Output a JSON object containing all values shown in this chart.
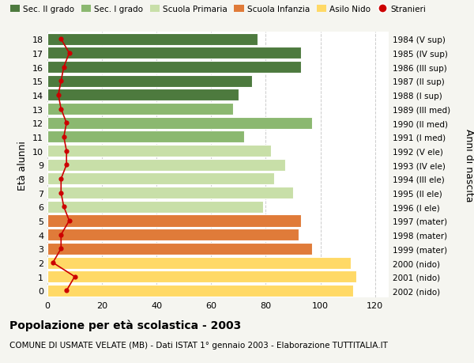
{
  "ages": [
    0,
    1,
    2,
    3,
    4,
    5,
    6,
    7,
    8,
    9,
    10,
    11,
    12,
    13,
    14,
    15,
    16,
    17,
    18
  ],
  "values": [
    112,
    113,
    111,
    97,
    92,
    93,
    79,
    90,
    83,
    87,
    82,
    72,
    97,
    68,
    70,
    75,
    93,
    93,
    77
  ],
  "bar_colors": [
    "#FFD966",
    "#FFD966",
    "#FFD966",
    "#E07B39",
    "#E07B39",
    "#E07B39",
    "#C8DFA8",
    "#C8DFA8",
    "#C8DFA8",
    "#C8DFA8",
    "#C8DFA8",
    "#8BB870",
    "#8BB870",
    "#8BB870",
    "#4D7A3E",
    "#4D7A3E",
    "#4D7A3E",
    "#4D7A3E",
    "#4D7A3E"
  ],
  "stranieri_values": [
    7,
    10,
    2,
    5,
    5,
    8,
    6,
    5,
    5,
    7,
    7,
    6,
    7,
    5,
    4,
    5,
    6,
    8,
    5
  ],
  "right_labels": [
    "2002 (nido)",
    "2001 (nido)",
    "2000 (nido)",
    "1999 (mater)",
    "1998 (mater)",
    "1997 (mater)",
    "1996 (I ele)",
    "1995 (II ele)",
    "1994 (III ele)",
    "1993 (IV ele)",
    "1992 (V ele)",
    "1991 (I med)",
    "1990 (II med)",
    "1989 (III med)",
    "1988 (I sup)",
    "1987 (II sup)",
    "1986 (III sup)",
    "1985 (IV sup)",
    "1984 (V sup)"
  ],
  "legend_labels": [
    "Sec. II grado",
    "Sec. I grado",
    "Scuola Primaria",
    "Scuola Infanzia",
    "Asilo Nido",
    "Stranieri"
  ],
  "legend_colors": [
    "#4D7A3E",
    "#8BB870",
    "#C8DFA8",
    "#E07B39",
    "#FFD966",
    "#CC0000"
  ],
  "xlabel": "Età alunni",
  "ylabel_right": "Anni di nascita",
  "title": "Popolazione per età scolastica - 2003",
  "subtitle": "COMUNE DI USMATE VELATE (MB) - Dati ISTAT 1° gennaio 2003 - Elaborazione TUTTITALIA.IT",
  "xlim": [
    0,
    125
  ],
  "xticks": [
    0,
    20,
    40,
    60,
    80,
    100,
    120
  ],
  "bg_color": "#F5F5F0",
  "plot_bg": "#FFFFFF",
  "grid_color": "#CCCCCC"
}
